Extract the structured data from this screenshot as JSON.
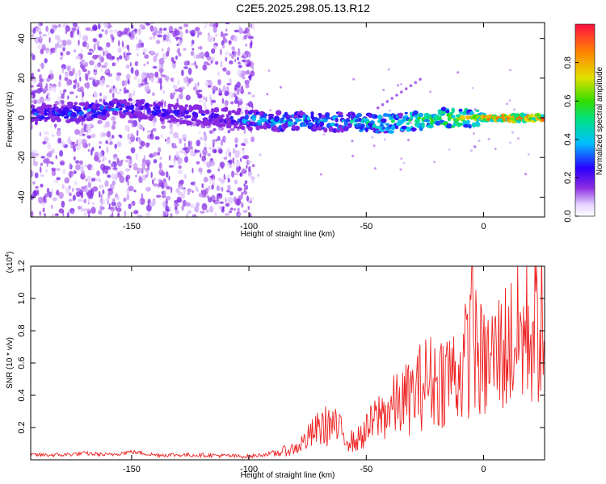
{
  "title": "C2E5.2025.298.05.13.R12",
  "chart_data": [
    {
      "type": "heatmap",
      "xlabel": "Height of straight line (km)",
      "ylabel": "Frequency (Hz)",
      "xlim": [
        -193,
        26
      ],
      "ylim": [
        -50,
        48
      ],
      "xticks": [
        -150,
        -100,
        -50,
        0
      ],
      "yticks": [
        -40,
        -20,
        0,
        20,
        40
      ],
      "colorbar": {
        "label": "Normalized spectral amplitude",
        "range": [
          0.0,
          1.0
        ],
        "ticks": [
          0.0,
          0.2,
          0.4,
          0.6,
          0.8
        ],
        "tick_labels": [
          "0.0",
          "0.2",
          "0.4",
          "0.6",
          "0.8"
        ]
      },
      "description_series": [
        {
          "x": [
            -190,
            -170,
            -150,
            -130,
            -110,
            -100,
            -80,
            -60,
            -40,
            -20,
            0,
            25
          ],
          "center_freq_hz": [
            2,
            3,
            5,
            2,
            0,
            -1,
            -2,
            -2,
            -3,
            0,
            0,
            0
          ],
          "peak_amplitude": [
            0.35,
            0.4,
            0.4,
            0.3,
            0.3,
            0.45,
            0.5,
            0.5,
            0.6,
            0.7,
            0.9,
            0.95
          ]
        }
      ]
    },
    {
      "type": "line",
      "xlabel": "Height of straight line (km)",
      "ylabel": "SNR (10 * v/v)",
      "multiplier": "(x10^4)",
      "multiplier_base": "(x10",
      "multiplier_exp": "4",
      "multiplier_close": ")",
      "xlim": [
        -193,
        26
      ],
      "ylim": [
        0,
        1.2
      ],
      "xticks": [
        -150,
        -100,
        -50,
        0
      ],
      "yticks": [
        0.2,
        0.4,
        0.6,
        0.8,
        1.0,
        1.2
      ],
      "series": [
        {
          "name": "SNR",
          "color": "#ee2222",
          "x": [
            -193,
            -180,
            -170,
            -160,
            -150,
            -140,
            -120,
            -100,
            -90,
            -80,
            -75,
            -70,
            -65,
            -60,
            -55,
            -50,
            -45,
            -40,
            -35,
            -30,
            -25,
            -20,
            -15,
            -10,
            -5,
            0,
            10,
            20,
            26
          ],
          "y": [
            0.03,
            0.03,
            0.04,
            0.03,
            0.05,
            0.03,
            0.03,
            0.02,
            0.04,
            0.08,
            0.15,
            0.22,
            0.25,
            0.18,
            0.12,
            0.2,
            0.3,
            0.35,
            0.4,
            0.45,
            0.55,
            0.55,
            0.6,
            0.6,
            0.8,
            0.65,
            0.8,
            0.9,
            0.95
          ]
        }
      ]
    }
  ]
}
